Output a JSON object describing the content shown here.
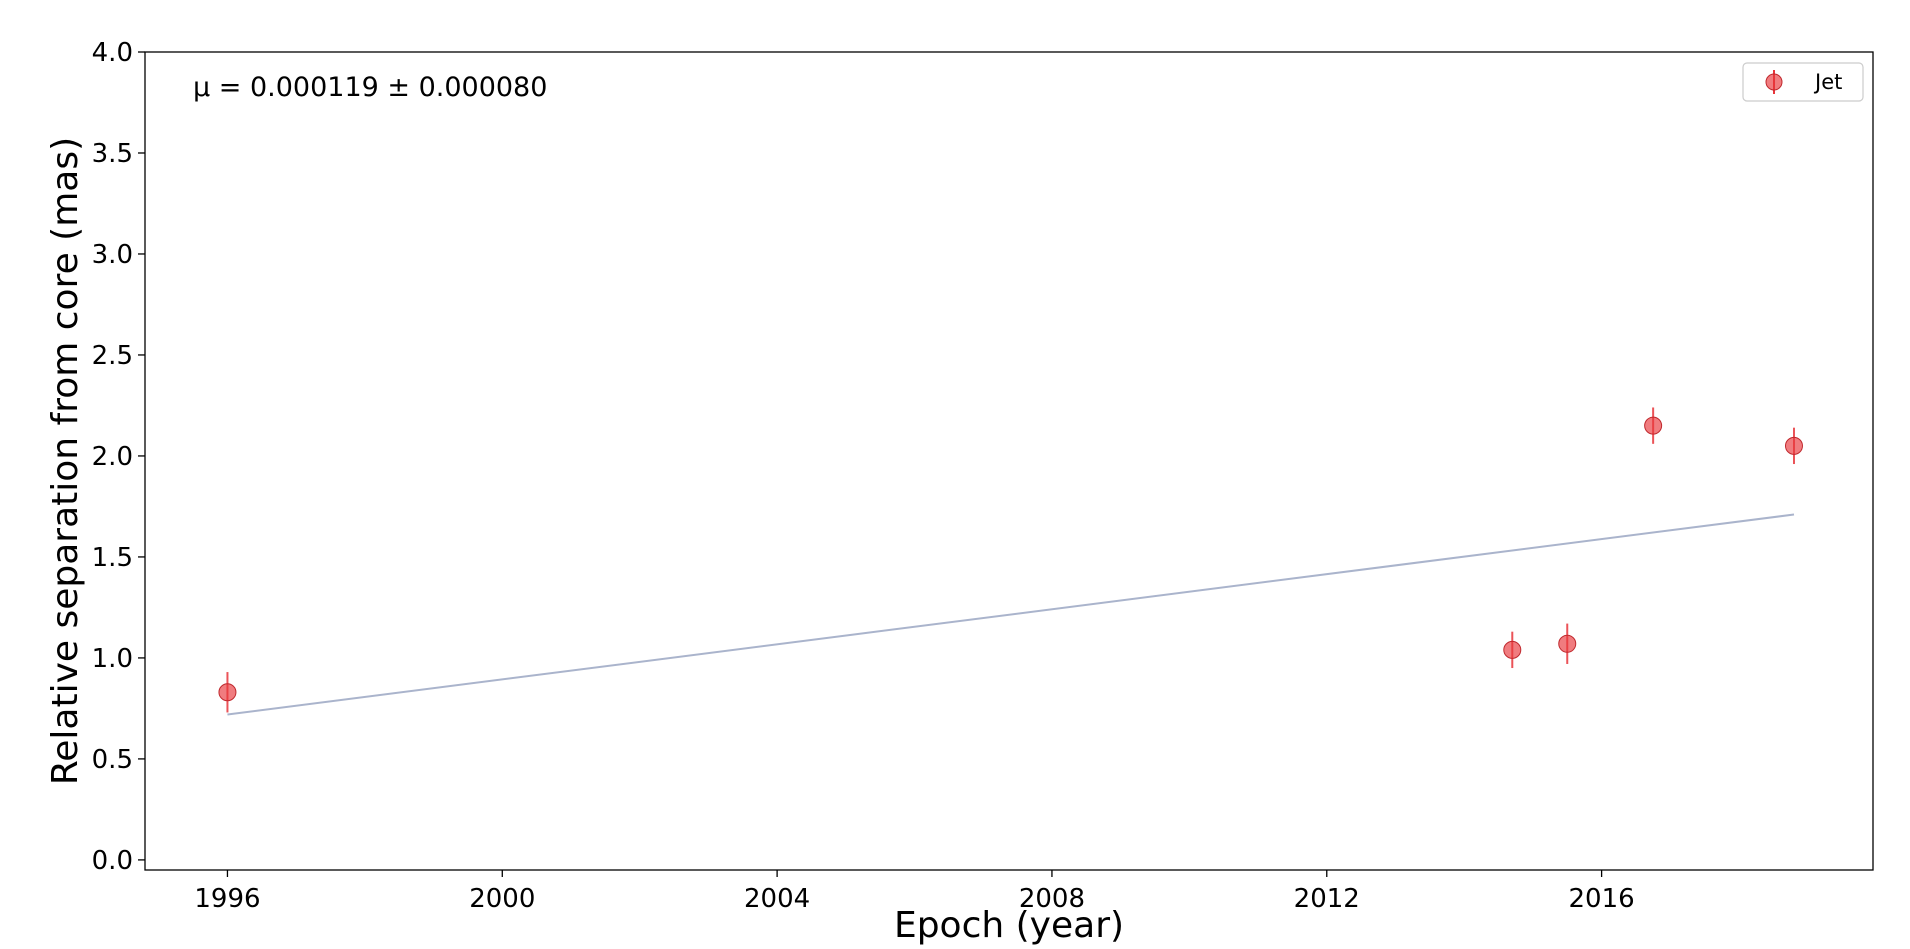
{
  "chart_data": {
    "type": "scatter",
    "xlabel": "Epoch (year)",
    "ylabel": "Relative separation from core (mas)",
    "annotation": "μ = 0.000119 ± 0.000080",
    "xlim": [
      1994.8,
      2019.95
    ],
    "ylim": [
      -0.05,
      4.0
    ],
    "x_ticks": [
      1996,
      2000,
      2004,
      2008,
      2012,
      2016
    ],
    "y_ticks": [
      0.0,
      0.5,
      1.0,
      1.5,
      2.0,
      2.5,
      3.0,
      3.5,
      4.0
    ],
    "x_tick_labels": [
      "1996",
      "2000",
      "2004",
      "2008",
      "2012",
      "2016"
    ],
    "y_tick_labels": [
      "0.0",
      "0.5",
      "1.0",
      "1.5",
      "2.0",
      "2.5",
      "3.0",
      "3.5",
      "4.0"
    ],
    "legend_position": "top-right",
    "series": [
      {
        "name": "Jet",
        "color": "#e8353b",
        "points": [
          {
            "x": 1996.0,
            "y": 0.83,
            "err": 0.1
          },
          {
            "x": 2014.7,
            "y": 1.04,
            "err": 0.09
          },
          {
            "x": 2015.5,
            "y": 1.07,
            "err": 0.1
          },
          {
            "x": 2016.75,
            "y": 2.15,
            "err": 0.09
          },
          {
            "x": 2018.8,
            "y": 2.05,
            "err": 0.09
          }
        ]
      }
    ],
    "fit_line": {
      "color": "#aab4cc",
      "x": [
        1996.0,
        2018.8
      ],
      "y": [
        0.72,
        1.71
      ]
    }
  }
}
